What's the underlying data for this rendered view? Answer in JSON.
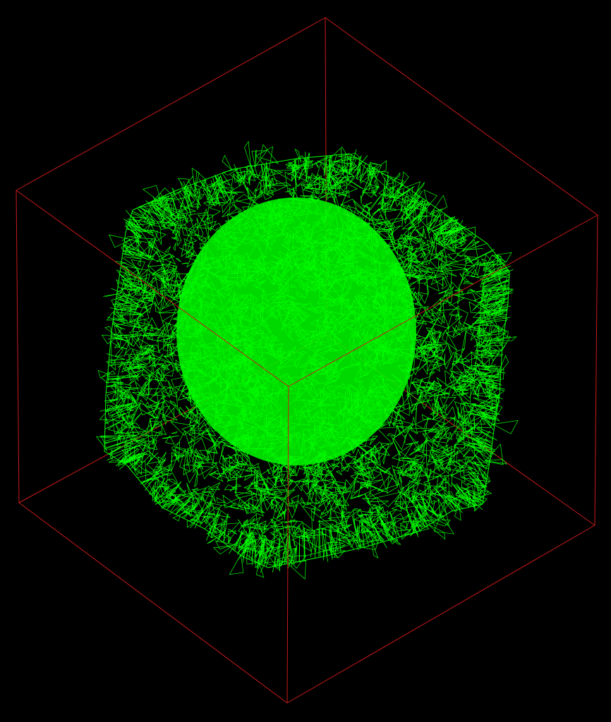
{
  "scene": {
    "background_color": "#000000",
    "bounding_box": {
      "shape": "cube",
      "style": "wireframe-edges",
      "color": "#cc1a1a"
    },
    "object": {
      "shape": "dense wireframe mesh, roughly spherical / rounded-cube",
      "style": "wireframe",
      "color": "#00ff00"
    }
  }
}
